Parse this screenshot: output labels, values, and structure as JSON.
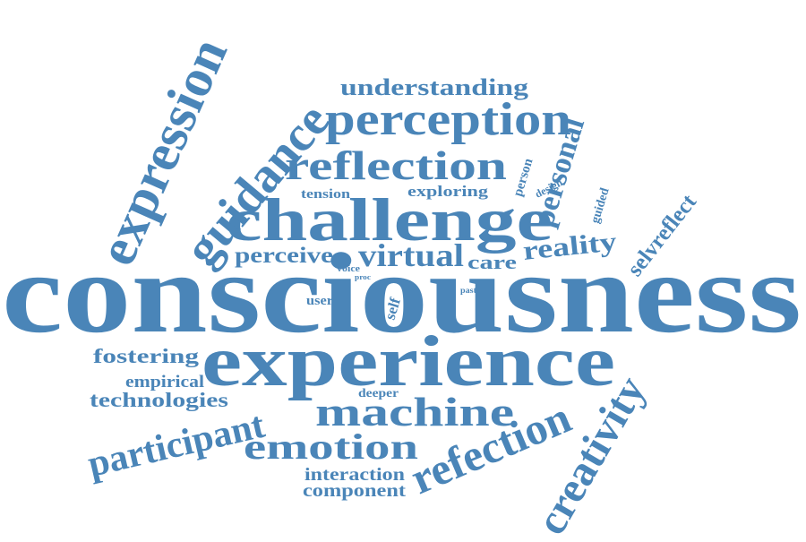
{
  "word_color": "#4a85b8",
  "background_color": "#ffffff",
  "words": [
    {
      "id": "consciousness",
      "text": "consciousness"
    },
    {
      "id": "experience",
      "text": "experience"
    },
    {
      "id": "challenge",
      "text": "challenge"
    },
    {
      "id": "expression",
      "text": "expression"
    },
    {
      "id": "guidance",
      "text": "guidance"
    },
    {
      "id": "perception",
      "text": "perception"
    },
    {
      "id": "reflection",
      "text": "reflection"
    },
    {
      "id": "understanding",
      "text": "understanding"
    },
    {
      "id": "machine",
      "text": "machine"
    },
    {
      "id": "emotion",
      "text": "emotion"
    },
    {
      "id": "participant",
      "text": "participant"
    },
    {
      "id": "refection",
      "text": "refection"
    },
    {
      "id": "creativity",
      "text": "creativity"
    },
    {
      "id": "virtual",
      "text": "virtual"
    },
    {
      "id": "reality",
      "text": "reality"
    },
    {
      "id": "personal",
      "text": "personal"
    },
    {
      "id": "perceive",
      "text": "perceive"
    },
    {
      "id": "care",
      "text": "care"
    },
    {
      "id": "selvreflect",
      "text": "selvreflect"
    },
    {
      "id": "fostering",
      "text": "fostering"
    },
    {
      "id": "empirical",
      "text": "empirical"
    },
    {
      "id": "technologies",
      "text": "technologies"
    },
    {
      "id": "interaction",
      "text": "interaction"
    },
    {
      "id": "component",
      "text": "component"
    },
    {
      "id": "tension",
      "text": "tension"
    },
    {
      "id": "exploring",
      "text": "exploring"
    },
    {
      "id": "person",
      "text": "person"
    },
    {
      "id": "design",
      "text": "design"
    },
    {
      "id": "guided",
      "text": "guided"
    },
    {
      "id": "voice",
      "text": "voice"
    },
    {
      "id": "proc",
      "text": "proc"
    },
    {
      "id": "user",
      "text": "user"
    },
    {
      "id": "self",
      "text": "self"
    },
    {
      "id": "past",
      "text": "past"
    },
    {
      "id": "deeper",
      "text": "deeper"
    }
  ]
}
